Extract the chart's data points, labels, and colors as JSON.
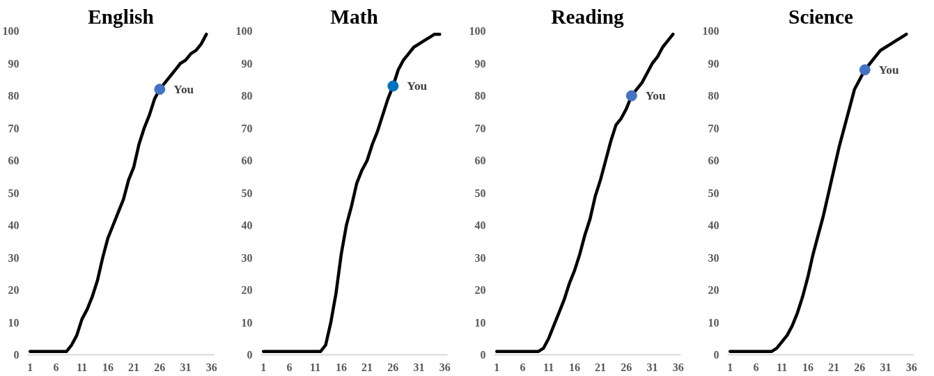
{
  "chart_data": [
    {
      "type": "line",
      "title": "English",
      "xlim": [
        0.5,
        36.5
      ],
      "xticks": [
        1,
        6,
        11,
        16,
        21,
        26,
        31,
        36
      ],
      "ylim": [
        0,
        100
      ],
      "yticks": [
        0,
        10,
        20,
        30,
        40,
        50,
        60,
        70,
        80,
        90,
        100
      ],
      "grid": false,
      "annotations": [
        "You"
      ],
      "series": [
        {
          "color": "#000000",
          "x": [
            1,
            2,
            3,
            4,
            5,
            6,
            7,
            8,
            9,
            10,
            11,
            12,
            13,
            14,
            15,
            16,
            17,
            18,
            19,
            20,
            21,
            22,
            23,
            24,
            25,
            26,
            27,
            28,
            29,
            30,
            31,
            32,
            33,
            34,
            35
          ],
          "values": [
            1,
            1,
            1,
            1,
            1,
            1,
            1,
            1,
            3,
            6,
            11,
            14,
            18,
            23,
            30,
            36,
            40,
            44,
            48,
            54,
            58,
            65,
            70,
            74,
            79,
            82,
            84,
            86,
            88,
            90,
            91,
            93,
            94,
            96,
            99
          ]
        },
        {
          "type": "scatter",
          "color": "#4472c4",
          "x": [
            26
          ],
          "values": [
            82
          ]
        }
      ]
    },
    {
      "type": "line",
      "title": "Math",
      "xlim": [
        0.5,
        36.5
      ],
      "xticks": [
        1,
        6,
        11,
        16,
        21,
        26,
        31,
        36
      ],
      "ylim": [
        0,
        100
      ],
      "yticks": [
        0,
        10,
        20,
        30,
        40,
        50,
        60,
        70,
        80,
        90,
        100
      ],
      "grid": false,
      "annotations": [
        "You"
      ],
      "series": [
        {
          "color": "#000000",
          "x": [
            1,
            2,
            3,
            4,
            5,
            6,
            7,
            8,
            9,
            10,
            11,
            12,
            13,
            14,
            15,
            16,
            17,
            18,
            19,
            20,
            21,
            22,
            23,
            24,
            25,
            26,
            27,
            28,
            29,
            30,
            31,
            32,
            33,
            34,
            35
          ],
          "values": [
            1,
            1,
            1,
            1,
            1,
            1,
            1,
            1,
            1,
            1,
            1,
            1,
            3,
            10,
            19,
            31,
            40,
            46,
            53,
            57,
            60,
            65,
            69,
            74,
            79,
            83,
            88,
            91,
            93,
            95,
            96,
            97,
            98,
            99,
            99
          ]
        },
        {
          "type": "scatter",
          "color": "#0070c0",
          "x": [
            26
          ],
          "values": [
            83
          ]
        }
      ]
    },
    {
      "type": "line",
      "title": "Reading",
      "xlim": [
        0.5,
        36.5
      ],
      "xticks": [
        1,
        6,
        11,
        16,
        21,
        26,
        31,
        36
      ],
      "ylim": [
        0,
        100
      ],
      "yticks": [
        0,
        10,
        20,
        30,
        40,
        50,
        60,
        70,
        80,
        90,
        100
      ],
      "grid": false,
      "annotations": [
        "You"
      ],
      "series": [
        {
          "color": "#000000",
          "x": [
            1,
            2,
            3,
            4,
            5,
            6,
            7,
            8,
            9,
            10,
            11,
            12,
            13,
            14,
            15,
            16,
            17,
            18,
            19,
            20,
            21,
            22,
            23,
            24,
            25,
            26,
            27,
            28,
            29,
            30,
            31,
            32,
            33,
            34,
            35
          ],
          "values": [
            1,
            1,
            1,
            1,
            1,
            1,
            1,
            1,
            1,
            2,
            5,
            9,
            13,
            17,
            22,
            26,
            31,
            37,
            42,
            49,
            54,
            60,
            66,
            71,
            73,
            76,
            80,
            82,
            84,
            87,
            90,
            92,
            95,
            97,
            99
          ]
        },
        {
          "type": "scatter",
          "color": "#4472c4",
          "x": [
            27
          ],
          "values": [
            80
          ]
        }
      ]
    },
    {
      "type": "line",
      "title": "Science",
      "xlim": [
        0.5,
        36.5
      ],
      "xticks": [
        1,
        6,
        11,
        16,
        21,
        26,
        31,
        36
      ],
      "ylim": [
        0,
        100
      ],
      "yticks": [
        0,
        10,
        20,
        30,
        40,
        50,
        60,
        70,
        80,
        90,
        100
      ],
      "grid": false,
      "annotations": [
        "You"
      ],
      "series": [
        {
          "color": "#000000",
          "x": [
            1,
            2,
            3,
            4,
            5,
            6,
            7,
            8,
            9,
            10,
            11,
            12,
            13,
            14,
            15,
            16,
            17,
            18,
            19,
            20,
            21,
            22,
            23,
            24,
            25,
            26,
            27,
            28,
            29,
            30,
            31,
            32,
            33,
            34,
            35
          ],
          "values": [
            1,
            1,
            1,
            1,
            1,
            1,
            1,
            1,
            1,
            2,
            4,
            6,
            9,
            13,
            18,
            24,
            31,
            37,
            43,
            50,
            57,
            64,
            70,
            76,
            82,
            85,
            88,
            90,
            92,
            94,
            95,
            96,
            97,
            98,
            99
          ]
        },
        {
          "type": "scatter",
          "color": "#4472c4",
          "x": [
            27
          ],
          "values": [
            88
          ]
        }
      ]
    }
  ]
}
